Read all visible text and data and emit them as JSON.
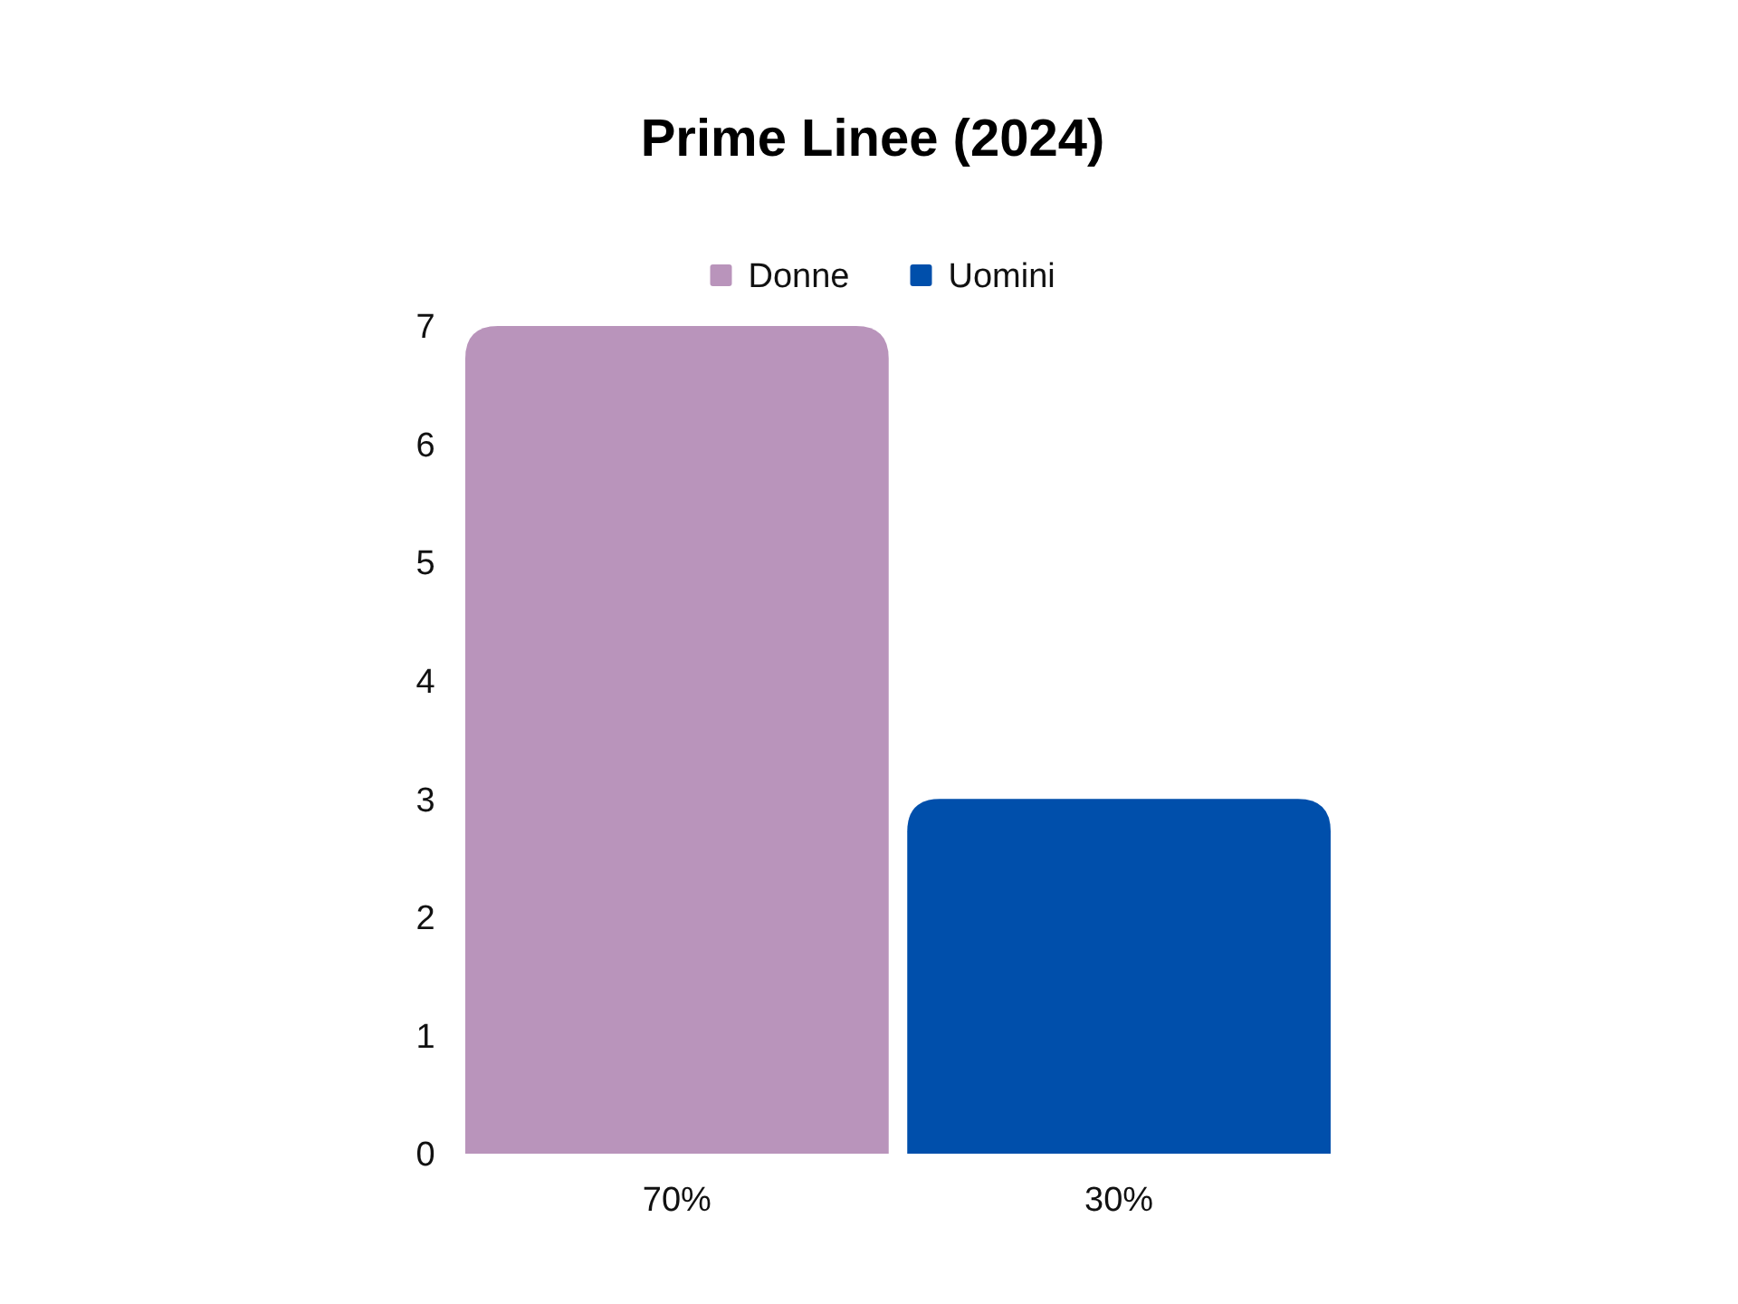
{
  "chart_data": {
    "type": "bar",
    "title": "Prime Linee  (2024)",
    "categories": [
      "70%",
      "30%"
    ],
    "series": [
      {
        "name": "Donne",
        "color": "#b994bb",
        "values": [
          7,
          null
        ]
      },
      {
        "name": "Uomini",
        "color": "#004fab",
        "values": [
          null,
          3
        ]
      }
    ],
    "stacked": true,
    "ylim": [
      0,
      7
    ],
    "yticks": [
      0,
      1,
      2,
      3,
      4,
      5,
      6,
      7
    ],
    "grid": false,
    "legend": "top"
  }
}
